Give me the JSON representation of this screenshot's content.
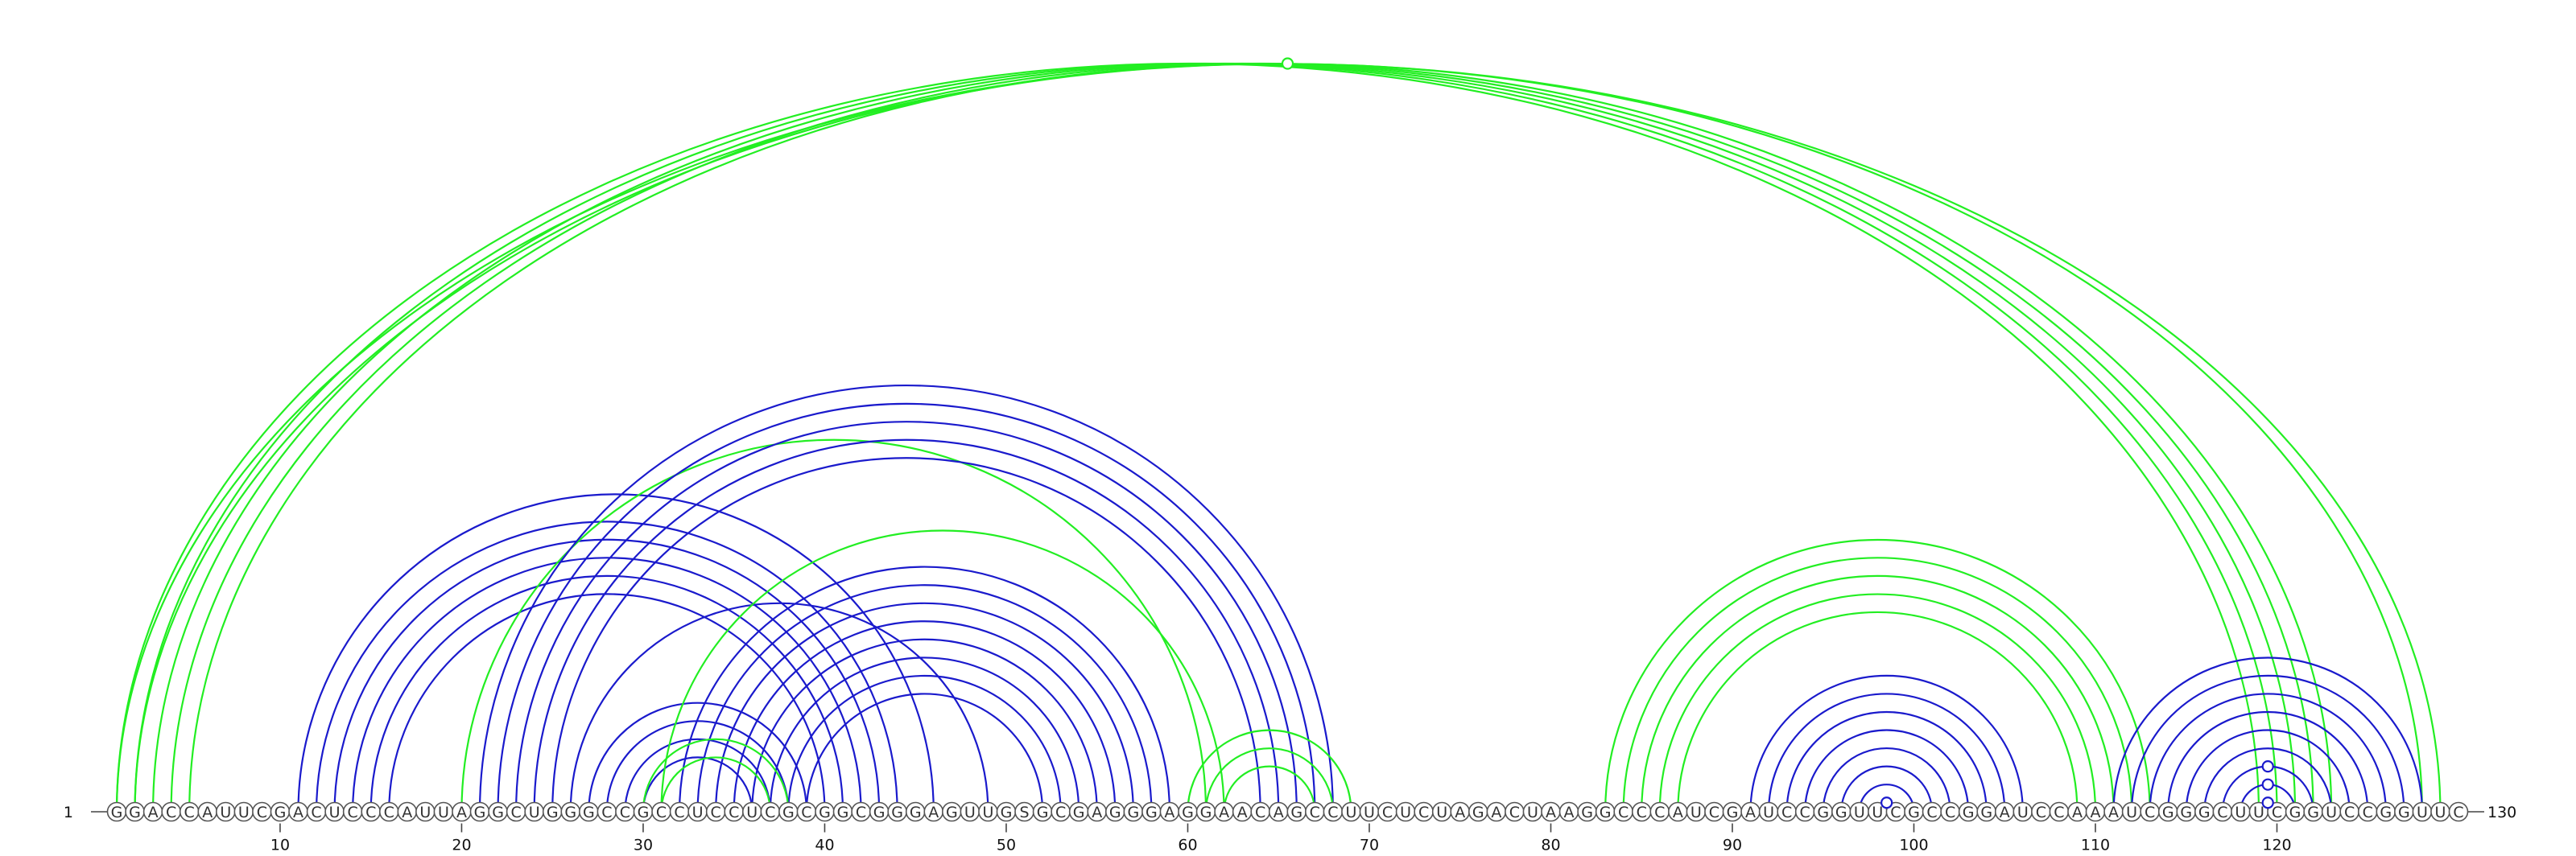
{
  "sequence": "GGACCAUUCGACUCCCAUUAGGCUGGGCCGCCUCCUCGCGGCGGGAGUUGSGCGAGGGAGGAACAGCCUUCUCUAGACUAAGGCCCAUCGAUCCGGUUCGCCGGAUCCAAAUCGGGCUUCGGUCCGGUUC",
  "start_label": "1",
  "end_label": "130",
  "ticks": [
    10,
    20,
    30,
    40,
    50,
    60,
    70,
    80,
    90,
    100,
    110,
    120
  ],
  "colors": {
    "green": "#22ee22",
    "blue": "#1a1acc"
  },
  "arcs": [
    {
      "i": 1,
      "j": 119,
      "color": "green"
    },
    {
      "i": 2,
      "j": 120,
      "color": "green"
    },
    {
      "i": 3,
      "j": 121,
      "color": "green"
    },
    {
      "i": 4,
      "j": 122,
      "color": "green"
    },
    {
      "i": 5,
      "j": 123,
      "color": "green"
    },
    {
      "i": 1,
      "j": 129,
      "color": "green"
    },
    {
      "i": 2,
      "j": 128,
      "color": "green"
    },
    {
      "i": 12,
      "j": 44,
      "color": "blue"
    },
    {
      "i": 13,
      "j": 43,
      "color": "blue"
    },
    {
      "i": 14,
      "j": 42,
      "color": "blue"
    },
    {
      "i": 15,
      "j": 41,
      "color": "blue"
    },
    {
      "i": 16,
      "j": 40,
      "color": "blue"
    },
    {
      "i": 11,
      "j": 46,
      "color": "blue"
    },
    {
      "i": 20,
      "j": 61,
      "color": "green"
    },
    {
      "i": 22,
      "j": 67,
      "color": "blue"
    },
    {
      "i": 23,
      "j": 66,
      "color": "blue"
    },
    {
      "i": 24,
      "j": 65,
      "color": "blue"
    },
    {
      "i": 25,
      "j": 64,
      "color": "blue"
    },
    {
      "i": 21,
      "j": 68,
      "color": "blue"
    },
    {
      "i": 26,
      "j": 49,
      "color": "blue"
    },
    {
      "i": 27,
      "j": 39,
      "color": "blue"
    },
    {
      "i": 28,
      "j": 38,
      "color": "blue"
    },
    {
      "i": 29,
      "j": 37,
      "color": "blue"
    },
    {
      "i": 30,
      "j": 36,
      "color": "blue"
    },
    {
      "i": 31,
      "j": 62,
      "color": "green"
    },
    {
      "i": 32,
      "j": 59,
      "color": "blue"
    },
    {
      "i": 33,
      "j": 58,
      "color": "blue"
    },
    {
      "i": 34,
      "j": 57,
      "color": "blue"
    },
    {
      "i": 35,
      "j": 56,
      "color": "blue"
    },
    {
      "i": 36,
      "j": 55,
      "color": "blue"
    },
    {
      "i": 37,
      "j": 54,
      "color": "blue"
    },
    {
      "i": 38,
      "j": 53,
      "color": "blue"
    },
    {
      "i": 39,
      "j": 52,
      "color": "blue"
    },
    {
      "i": 30,
      "j": 38,
      "color": "green"
    },
    {
      "i": 31,
      "j": 37,
      "color": "green"
    },
    {
      "i": 60,
      "j": 69,
      "color": "green"
    },
    {
      "i": 61,
      "j": 68,
      "color": "green"
    },
    {
      "i": 62,
      "j": 67,
      "color": "green"
    },
    {
      "i": 83,
      "j": 113,
      "color": "green"
    },
    {
      "i": 84,
      "j": 112,
      "color": "green"
    },
    {
      "i": 85,
      "j": 111,
      "color": "green"
    },
    {
      "i": 86,
      "j": 110,
      "color": "green"
    },
    {
      "i": 87,
      "j": 109,
      "color": "green"
    },
    {
      "i": 91,
      "j": 106,
      "color": "blue"
    },
    {
      "i": 92,
      "j": 105,
      "color": "blue"
    },
    {
      "i": 93,
      "j": 104,
      "color": "blue"
    },
    {
      "i": 94,
      "j": 103,
      "color": "blue"
    },
    {
      "i": 95,
      "j": 102,
      "color": "blue"
    },
    {
      "i": 96,
      "j": 101,
      "color": "blue"
    },
    {
      "i": 97,
      "j": 100,
      "color": "blue"
    },
    {
      "i": 98,
      "j": 99,
      "color": "blue"
    },
    {
      "i": 111,
      "j": 128,
      "color": "blue"
    },
    {
      "i": 112,
      "j": 127,
      "color": "blue"
    },
    {
      "i": 113,
      "j": 126,
      "color": "blue"
    },
    {
      "i": 114,
      "j": 125,
      "color": "blue"
    },
    {
      "i": 115,
      "j": 124,
      "color": "blue"
    },
    {
      "i": 116,
      "j": 123,
      "color": "blue"
    },
    {
      "i": 117,
      "j": 122,
      "color": "blue"
    },
    {
      "i": 118,
      "j": 121,
      "color": "blue"
    }
  ],
  "markers": [
    {
      "i": 1,
      "j": 130,
      "color": "green"
    },
    {
      "i": 98,
      "j": 99,
      "color": "blue"
    },
    {
      "i": 118,
      "j": 121,
      "color": "blue"
    },
    {
      "i": 117,
      "j": 122,
      "color": "blue"
    },
    {
      "i": 119,
      "j": 120,
      "color": "blue"
    }
  ]
}
